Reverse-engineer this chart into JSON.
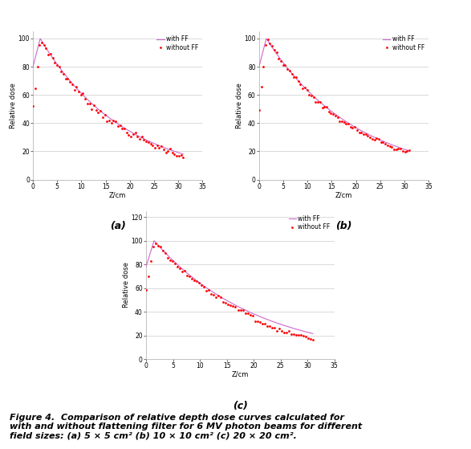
{
  "subplot_labels": [
    "(a)",
    "(b)",
    "(c)"
  ],
  "xlabel": "Z/cm",
  "ylabel": "Relative dose",
  "xlim": [
    0,
    35
  ],
  "ylim_ab": [
    0,
    105
  ],
  "ylim_c": [
    0,
    125
  ],
  "xticks": [
    0,
    5,
    10,
    15,
    20,
    25,
    30,
    35
  ],
  "yticks_ab": [
    0,
    20,
    40,
    60,
    80,
    100
  ],
  "yticks_c": [
    0,
    20,
    40,
    60,
    80,
    100,
    120
  ],
  "legend_with_ff": "with FF",
  "legend_without_ff": "without FF",
  "color_with_ff": "#cc66cc",
  "color_without_ff": "#ff0000",
  "background_color": "#ffffff",
  "grid_color": "#cccccc",
  "label_fontsize": 6,
  "tick_fontsize": 5.5,
  "legend_fontsize": 5.5,
  "sublabel_fontsize": 9,
  "caption_fontsize": 8,
  "caption": "Figure 4.  Comparison of relative depth dose curves calculated for\nwith and without flattening filter for 6 MV photon beams for different\nfield sizes: (a) 5 × 5 cm² (b) 10 × 10 cm² (c) 20 × 20 cm²."
}
